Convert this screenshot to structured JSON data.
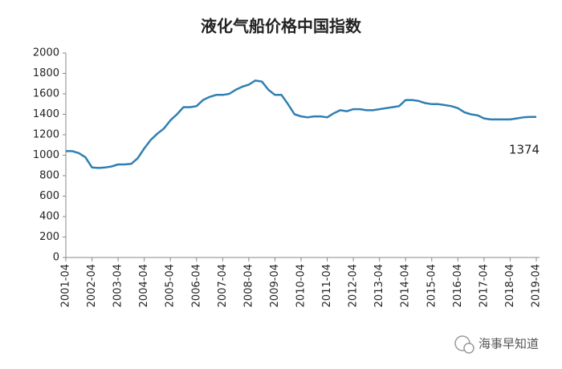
{
  "chart_data": {
    "type": "line",
    "title": "液化气船价格中国指数",
    "x": [
      "2001-04",
      "2001-07",
      "2001-10",
      "2002-01",
      "2002-04",
      "2002-07",
      "2002-10",
      "2003-01",
      "2003-04",
      "2003-07",
      "2003-10",
      "2004-01",
      "2004-04",
      "2004-07",
      "2004-10",
      "2005-01",
      "2005-04",
      "2005-07",
      "2005-10",
      "2006-01",
      "2006-04",
      "2006-07",
      "2006-10",
      "2007-01",
      "2007-04",
      "2007-07",
      "2007-10",
      "2008-01",
      "2008-04",
      "2008-07",
      "2008-10",
      "2009-01",
      "2009-04",
      "2009-07",
      "2009-10",
      "2010-01",
      "2010-04",
      "2010-07",
      "2010-10",
      "2011-01",
      "2011-04",
      "2011-07",
      "2011-10",
      "2012-01",
      "2012-04",
      "2012-07",
      "2012-10",
      "2013-01",
      "2013-04",
      "2013-07",
      "2013-10",
      "2014-01",
      "2014-04",
      "2014-07",
      "2014-10",
      "2015-01",
      "2015-04",
      "2015-07",
      "2015-10",
      "2016-01",
      "2016-04",
      "2016-07",
      "2016-10",
      "2017-01",
      "2017-04",
      "2017-07",
      "2017-10",
      "2018-01",
      "2018-04",
      "2018-07",
      "2018-10",
      "2019-01",
      "2019-04"
    ],
    "values": [
      1040,
      1040,
      1020,
      980,
      880,
      875,
      880,
      890,
      910,
      910,
      915,
      970,
      1067,
      1150,
      1210,
      1260,
      1340,
      1400,
      1470,
      1470,
      1480,
      1540,
      1570,
      1590,
      1590,
      1600,
      1640,
      1670,
      1690,
      1730,
      1720,
      1640,
      1590,
      1590,
      1500,
      1400,
      1380,
      1370,
      1380,
      1380,
      1370,
      1410,
      1440,
      1430,
      1450,
      1450,
      1440,
      1440,
      1450,
      1460,
      1470,
      1480,
      1540,
      1540,
      1530,
      1510,
      1500,
      1500,
      1490,
      1480,
      1460,
      1420,
      1400,
      1390,
      1360,
      1350,
      1350,
      1350,
      1350,
      1360,
      1370,
      1374,
      1374
    ],
    "color": "#2f7fb3",
    "ylim": [
      0,
      2000
    ],
    "yticks": [
      0,
      200,
      400,
      600,
      800,
      1000,
      1200,
      1400,
      1600,
      1800,
      2000
    ],
    "xticks": [
      "2001-04",
      "2002-04",
      "2003-04",
      "2004-04",
      "2005-04",
      "2006-04",
      "2007-04",
      "2008-04",
      "2009-04",
      "2010-04",
      "2011-04",
      "2012-04",
      "2013-04",
      "2014-04",
      "2015-04",
      "2016-04",
      "2017-04",
      "2018-04",
      "2019-04"
    ],
    "annotation": "1374"
  },
  "watermark": "海事早知道"
}
